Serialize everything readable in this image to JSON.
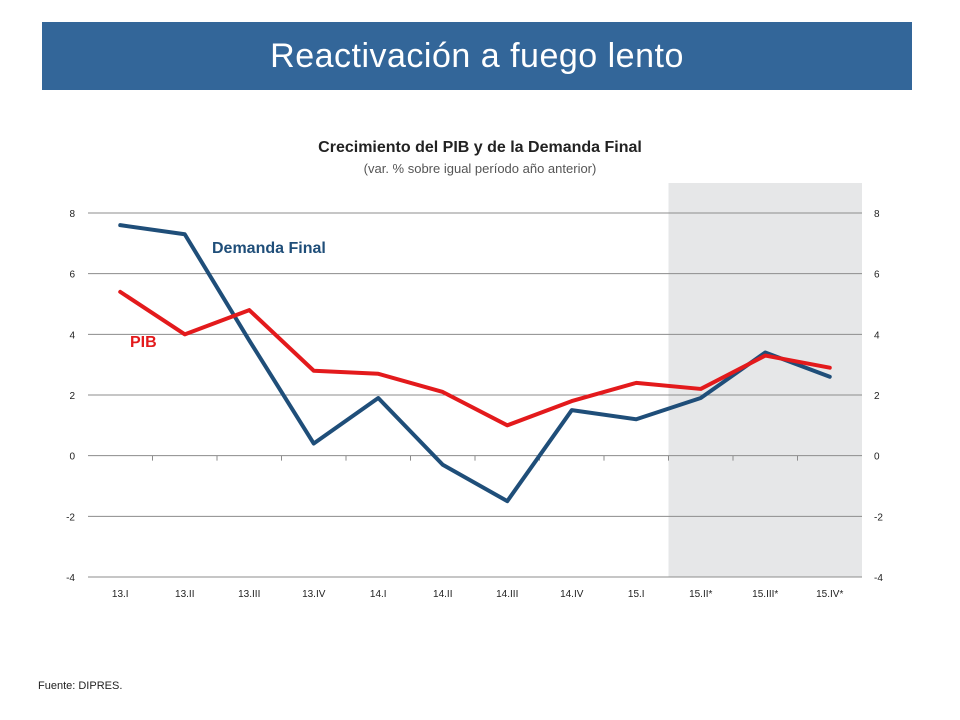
{
  "header": {
    "title": "Reactivación a fuego lento"
  },
  "footer": {
    "source": "Fuente: DIPRES."
  },
  "chart_data": {
    "type": "line",
    "title": "Crecimiento del PIB y de la Demanda Final",
    "subtitle": "(var. % sobre igual período año anterior)",
    "xlabel": "",
    "ylabel": "",
    "categories": [
      "13.I",
      "13.II",
      "13.III",
      "13.IV",
      "14.I",
      "14.II",
      "14.III",
      "14.IV",
      "15.I",
      "15.II*",
      "15.III*",
      "15.IV*"
    ],
    "ylim": [
      -4,
      8
    ],
    "yticks": [
      -4,
      -2,
      0,
      2,
      4,
      6,
      8
    ],
    "grid": true,
    "shaded_region": {
      "from": "15.II*",
      "to": "15.IV*",
      "color": "#e6e7e8"
    },
    "series": [
      {
        "name": "Demanda Final",
        "color": "#1f4e79",
        "values": [
          7.6,
          7.3,
          3.8,
          0.4,
          1.9,
          -0.3,
          -1.5,
          1.5,
          1.2,
          1.9,
          3.4,
          2.6
        ]
      },
      {
        "name": "PIB",
        "color": "#e31a1c",
        "values": [
          5.4,
          4.0,
          4.8,
          2.8,
          2.7,
          2.1,
          1.0,
          1.8,
          2.4,
          2.2,
          3.3,
          2.9
        ]
      }
    ]
  }
}
